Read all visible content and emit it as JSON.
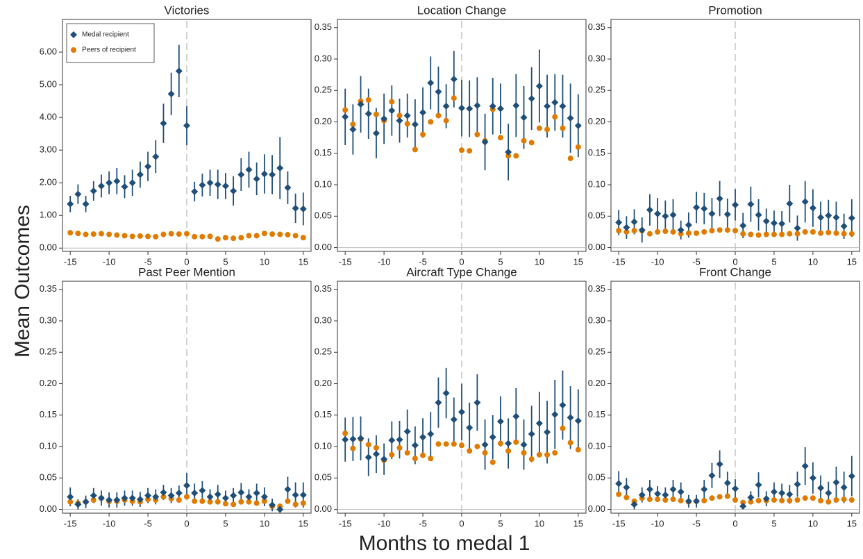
{
  "xlabel": "Months to medal 1",
  "ylabel": "Mean Outcomes",
  "chart_data": [
    {
      "type": "scatter",
      "title": "Victories",
      "legend": "upper left",
      "x": [
        -15,
        -14,
        -13,
        -12,
        -11,
        -10,
        -9,
        -8,
        -7,
        -6,
        -5,
        -4,
        -3,
        -2,
        -1,
        0,
        1,
        2,
        3,
        4,
        5,
        6,
        7,
        8,
        9,
        10,
        11,
        12,
        13,
        14,
        15
      ],
      "xlim": [
        -16,
        16
      ],
      "xticks": [
        -15,
        -10,
        -5,
        0,
        5,
        10,
        15
      ],
      "ylim": [
        -0.1,
        7.0
      ],
      "yticks": [
        {
          "value": 0,
          "label": "0.00"
        },
        {
          "value": 1,
          "label": "1.00"
        },
        {
          "value": 2,
          "label": "2.00"
        },
        {
          "value": 3,
          "label": "3.00"
        },
        {
          "value": 4,
          "label": "4.00"
        },
        {
          "value": 5,
          "label": "5.00"
        },
        {
          "value": 6,
          "label": "6.00"
        }
      ],
      "vline": 0,
      "hline": 0,
      "series": [
        {
          "name": "Medal recipient",
          "color": "#1f4e79",
          "marker": "diamond",
          "values": [
            1.35,
            1.65,
            1.35,
            1.75,
            1.9,
            2.0,
            2.05,
            1.88,
            2.0,
            2.25,
            2.5,
            2.8,
            3.82,
            4.72,
            5.42,
            3.75,
            1.73,
            1.93,
            2.0,
            1.95,
            1.9,
            1.75,
            2.25,
            2.4,
            2.12,
            2.27,
            2.25,
            2.45,
            1.85,
            1.22,
            1.2
          ],
          "errors": [
            0.25,
            0.3,
            0.25,
            0.3,
            0.35,
            0.35,
            0.4,
            0.35,
            0.4,
            0.4,
            0.45,
            0.5,
            0.6,
            0.65,
            0.8,
            0.6,
            0.3,
            0.35,
            0.4,
            0.45,
            0.4,
            0.45,
            0.5,
            0.55,
            0.5,
            0.6,
            0.6,
            0.95,
            0.5,
            0.45,
            0.5
          ]
        },
        {
          "name": "Peers of recipient",
          "color": "#e07b00",
          "marker": "circle",
          "values": [
            0.47,
            0.45,
            0.42,
            0.43,
            0.44,
            0.42,
            0.4,
            0.38,
            0.36,
            0.37,
            0.36,
            0.35,
            0.42,
            0.44,
            0.43,
            0.44,
            0.35,
            0.35,
            0.36,
            0.28,
            0.32,
            0.3,
            0.32,
            0.38,
            0.38,
            0.45,
            0.43,
            0.42,
            0.41,
            0.38,
            0.32
          ]
        }
      ]
    },
    {
      "type": "scatter",
      "title": "Location Change",
      "x": [
        -15,
        -14,
        -13,
        -12,
        -11,
        -10,
        -9,
        -8,
        -7,
        -6,
        -5,
        -4,
        -3,
        -2,
        -1,
        0,
        1,
        2,
        3,
        4,
        5,
        6,
        7,
        8,
        9,
        10,
        11,
        12,
        13,
        14,
        15
      ],
      "xlim": [
        -16,
        16
      ],
      "xticks": [
        -15,
        -10,
        -5,
        0,
        5,
        10,
        15
      ],
      "ylim": [
        -0.006,
        0.363
      ],
      "yticks": [
        {
          "value": 0,
          "label": "0.00"
        },
        0.05,
        {
          "value": 0.1,
          "label": "0.10"
        },
        0.15,
        {
          "value": 0.2,
          "label": "0.20"
        },
        0.25,
        {
          "value": 0.3,
          "label": "0.30"
        },
        0.35
      ],
      "vline": 0,
      "hline": 0,
      "series": [
        {
          "color": "#1f4e79",
          "marker": "diamond",
          "values": [
            0.208,
            0.188,
            0.228,
            0.213,
            0.182,
            0.205,
            0.218,
            0.202,
            0.21,
            0.196,
            0.215,
            0.262,
            0.248,
            0.225,
            0.268,
            0.222,
            0.221,
            0.226,
            0.168,
            0.225,
            0.221,
            0.152,
            0.226,
            0.207,
            0.237,
            0.257,
            0.225,
            0.231,
            0.225,
            0.206,
            0.194
          ],
          "errors": [
            0.045,
            0.04,
            0.045,
            0.04,
            0.04,
            0.04,
            0.04,
            0.035,
            0.035,
            0.04,
            0.04,
            0.042,
            0.04,
            0.035,
            0.045,
            0.045,
            0.045,
            0.045,
            0.045,
            0.045,
            0.04,
            0.045,
            0.05,
            0.05,
            0.05,
            0.058,
            0.05,
            0.045,
            0.05,
            0.055,
            0.05
          ]
        },
        {
          "color": "#e07b00",
          "marker": "circle",
          "values": [
            0.219,
            0.196,
            0.233,
            0.235,
            0.212,
            0.202,
            0.232,
            0.21,
            0.197,
            0.156,
            0.18,
            0.2,
            0.21,
            0.202,
            0.238,
            0.155,
            0.154,
            0.18,
            0.17,
            0.22,
            0.175,
            0.146,
            0.146,
            0.17,
            0.167,
            0.19,
            0.188,
            0.208,
            0.19,
            0.142,
            0.16
          ]
        }
      ]
    },
    {
      "type": "scatter",
      "title": "Promotion",
      "x": [
        -15,
        -14,
        -13,
        -12,
        -11,
        -10,
        -9,
        -8,
        -7,
        -6,
        -5,
        -4,
        -3,
        -2,
        -1,
        0,
        1,
        2,
        3,
        4,
        5,
        6,
        7,
        8,
        9,
        10,
        11,
        12,
        13,
        14,
        15
      ],
      "xlim": [
        -16,
        16
      ],
      "xticks": [
        -15,
        -10,
        -5,
        0,
        5,
        10,
        15
      ],
      "ylim": [
        -0.006,
        0.363
      ],
      "yticks": [
        {
          "value": 0,
          "label": "0.00"
        },
        0.05,
        {
          "value": 0.1,
          "label": "0.10"
        },
        0.15,
        {
          "value": 0.2,
          "label": "0.20"
        },
        0.25,
        {
          "value": 0.3,
          "label": "0.30"
        },
        0.35
      ],
      "vline": 0,
      "hline": 0,
      "series": [
        {
          "color": "#1f4e79",
          "marker": "diamond",
          "values": [
            0.04,
            0.032,
            0.041,
            0.028,
            0.06,
            0.054,
            0.05,
            0.052,
            0.028,
            0.036,
            0.064,
            0.062,
            0.054,
            0.078,
            0.053,
            0.068,
            0.035,
            0.069,
            0.052,
            0.042,
            0.039,
            0.038,
            0.07,
            0.031,
            0.073,
            0.063,
            0.048,
            0.051,
            0.048,
            0.034,
            0.047
          ],
          "errors": [
            0.02,
            0.018,
            0.02,
            0.02,
            0.025,
            0.025,
            0.025,
            0.025,
            0.015,
            0.02,
            0.025,
            0.025,
            0.025,
            0.028,
            0.025,
            0.025,
            0.02,
            0.028,
            0.025,
            0.02,
            0.02,
            0.02,
            0.03,
            0.02,
            0.033,
            0.03,
            0.025,
            0.025,
            0.025,
            0.02,
            0.03
          ]
        },
        {
          "color": "#e07b00",
          "marker": "circle",
          "values": [
            0.027,
            0.025,
            0.027,
            0.027,
            0.022,
            0.025,
            0.026,
            0.025,
            0.022,
            0.023,
            0.023,
            0.025,
            0.027,
            0.028,
            0.028,
            0.027,
            0.022,
            0.021,
            0.02,
            0.021,
            0.021,
            0.021,
            0.022,
            0.022,
            0.025,
            0.025,
            0.023,
            0.024,
            0.023,
            0.022,
            0.022
          ]
        }
      ]
    },
    {
      "type": "scatter",
      "title": "Past Peer Mention",
      "x": [
        -15,
        -14,
        -13,
        -12,
        -11,
        -10,
        -9,
        -8,
        -7,
        -6,
        -5,
        -4,
        -3,
        -2,
        -1,
        0,
        1,
        2,
        3,
        4,
        5,
        6,
        7,
        8,
        9,
        10,
        11,
        12,
        13,
        14,
        15
      ],
      "xlim": [
        -16,
        16
      ],
      "xticks": [
        -15,
        -10,
        -5,
        0,
        5,
        10,
        15
      ],
      "ylim": [
        -0.006,
        0.363
      ],
      "yticks": [
        {
          "value": 0,
          "label": "0.00"
        },
        0.05,
        {
          "value": 0.1,
          "label": "0.10"
        },
        0.15,
        {
          "value": 0.2,
          "label": "0.20"
        },
        0.25,
        {
          "value": 0.3,
          "label": "0.30"
        },
        0.35
      ],
      "vline": 0,
      "hline": 0,
      "series": [
        {
          "color": "#1f4e79",
          "marker": "diamond",
          "values": [
            0.02,
            0.008,
            0.012,
            0.022,
            0.018,
            0.015,
            0.015,
            0.018,
            0.018,
            0.016,
            0.022,
            0.02,
            0.027,
            0.022,
            0.026,
            0.038,
            0.026,
            0.03,
            0.02,
            0.024,
            0.018,
            0.022,
            0.027,
            0.02,
            0.026,
            0.02,
            0.007,
            0.0,
            0.032,
            0.023,
            0.023
          ],
          "errors": [
            0.015,
            0.008,
            0.01,
            0.012,
            0.012,
            0.012,
            0.012,
            0.012,
            0.012,
            0.012,
            0.012,
            0.012,
            0.012,
            0.012,
            0.012,
            0.02,
            0.015,
            0.015,
            0.012,
            0.015,
            0.012,
            0.012,
            0.015,
            0.012,
            0.015,
            0.015,
            0.01,
            0.005,
            0.02,
            0.02,
            0.02
          ]
        },
        {
          "color": "#e07b00",
          "marker": "circle",
          "values": [
            0.012,
            0.01,
            0.012,
            0.015,
            0.018,
            0.013,
            0.013,
            0.015,
            0.013,
            0.012,
            0.016,
            0.015,
            0.02,
            0.017,
            0.015,
            0.02,
            0.013,
            0.013,
            0.012,
            0.012,
            0.009,
            0.008,
            0.012,
            0.012,
            0.01,
            0.013,
            0.005,
            0.005,
            0.013,
            0.008,
            0.01
          ]
        }
      ]
    },
    {
      "type": "scatter",
      "title": "Aircraft Type Change",
      "x": [
        -15,
        -14,
        -13,
        -12,
        -11,
        -10,
        -9,
        -8,
        -7,
        -6,
        -5,
        -4,
        -3,
        -2,
        -1,
        0,
        1,
        2,
        3,
        4,
        5,
        6,
        7,
        8,
        9,
        10,
        11,
        12,
        13,
        14,
        15
      ],
      "xlim": [
        -16,
        16
      ],
      "xticks": [
        -15,
        -10,
        -5,
        0,
        5,
        10,
        15
      ],
      "ylim": [
        -0.006,
        0.363
      ],
      "yticks": [
        {
          "value": 0,
          "label": "0.00"
        },
        0.05,
        {
          "value": 0.1,
          "label": "0.10"
        },
        0.15,
        {
          "value": 0.2,
          "label": "0.20"
        },
        0.25,
        {
          "value": 0.3,
          "label": "0.30"
        },
        0.35
      ],
      "vline": 0,
      "hline": 0,
      "series": [
        {
          "color": "#1f4e79",
          "marker": "diamond",
          "values": [
            0.111,
            0.112,
            0.113,
            0.083,
            0.088,
            0.08,
            0.11,
            0.111,
            0.124,
            0.102,
            0.115,
            0.12,
            0.17,
            0.185,
            0.143,
            0.155,
            0.13,
            0.17,
            0.103,
            0.115,
            0.14,
            0.105,
            0.148,
            0.103,
            0.12,
            0.137,
            0.123,
            0.151,
            0.166,
            0.146,
            0.141
          ],
          "errors": [
            0.035,
            0.035,
            0.035,
            0.03,
            0.03,
            0.025,
            0.03,
            0.03,
            0.035,
            0.03,
            0.03,
            0.035,
            0.04,
            0.04,
            0.035,
            0.045,
            0.04,
            0.045,
            0.04,
            0.035,
            0.04,
            0.04,
            0.045,
            0.04,
            0.045,
            0.05,
            0.05,
            0.055,
            0.055,
            0.05,
            0.05
          ]
        },
        {
          "color": "#e07b00",
          "marker": "circle",
          "values": [
            0.121,
            0.097,
            0.112,
            0.103,
            0.098,
            0.078,
            0.087,
            0.098,
            0.09,
            0.081,
            0.086,
            0.081,
            0.104,
            0.104,
            0.104,
            0.102,
            0.093,
            0.1,
            0.09,
            0.075,
            0.105,
            0.093,
            0.107,
            0.09,
            0.08,
            0.087,
            0.087,
            0.09,
            0.129,
            0.106,
            0.095
          ]
        }
      ]
    },
    {
      "type": "scatter",
      "title": "Front Change",
      "x": [
        -15,
        -14,
        -13,
        -12,
        -11,
        -10,
        -9,
        -8,
        -7,
        -6,
        -5,
        -4,
        -3,
        -2,
        -1,
        0,
        1,
        2,
        3,
        4,
        5,
        6,
        7,
        8,
        9,
        10,
        11,
        12,
        13,
        14,
        15
      ],
      "xlim": [
        -16,
        16
      ],
      "xticks": [
        -15,
        -10,
        -5,
        0,
        5,
        10,
        15
      ],
      "ylim": [
        -0.006,
        0.363
      ],
      "yticks": [
        {
          "value": 0,
          "label": "0.00"
        },
        0.05,
        {
          "value": 0.1,
          "label": "0.10"
        },
        0.15,
        {
          "value": 0.2,
          "label": "0.20"
        },
        0.25,
        {
          "value": 0.3,
          "label": "0.30"
        },
        0.35
      ],
      "vline": 0,
      "hline": 0,
      "series": [
        {
          "color": "#1f4e79",
          "marker": "diamond",
          "values": [
            0.041,
            0.035,
            0.008,
            0.023,
            0.032,
            0.025,
            0.023,
            0.032,
            0.028,
            0.013,
            0.013,
            0.032,
            0.054,
            0.072,
            0.042,
            0.033,
            0.005,
            0.019,
            0.039,
            0.017,
            0.028,
            0.026,
            0.024,
            0.04,
            0.069,
            0.05,
            0.034,
            0.026,
            0.043,
            0.035,
            0.053
          ],
          "errors": [
            0.02,
            0.015,
            0.008,
            0.012,
            0.015,
            0.012,
            0.012,
            0.015,
            0.015,
            0.01,
            0.01,
            0.015,
            0.02,
            0.022,
            0.018,
            0.015,
            0.005,
            0.01,
            0.02,
            0.012,
            0.015,
            0.015,
            0.015,
            0.02,
            0.03,
            0.025,
            0.02,
            0.018,
            0.025,
            0.025,
            0.032
          ]
        },
        {
          "color": "#e07b00",
          "marker": "circle",
          "values": [
            0.024,
            0.019,
            0.013,
            0.018,
            0.016,
            0.016,
            0.015,
            0.016,
            0.014,
            0.012,
            0.013,
            0.014,
            0.018,
            0.02,
            0.021,
            0.015,
            0.011,
            0.012,
            0.014,
            0.014,
            0.015,
            0.014,
            0.014,
            0.015,
            0.018,
            0.018,
            0.014,
            0.012,
            0.015,
            0.016,
            0.015
          ]
        }
      ]
    }
  ]
}
